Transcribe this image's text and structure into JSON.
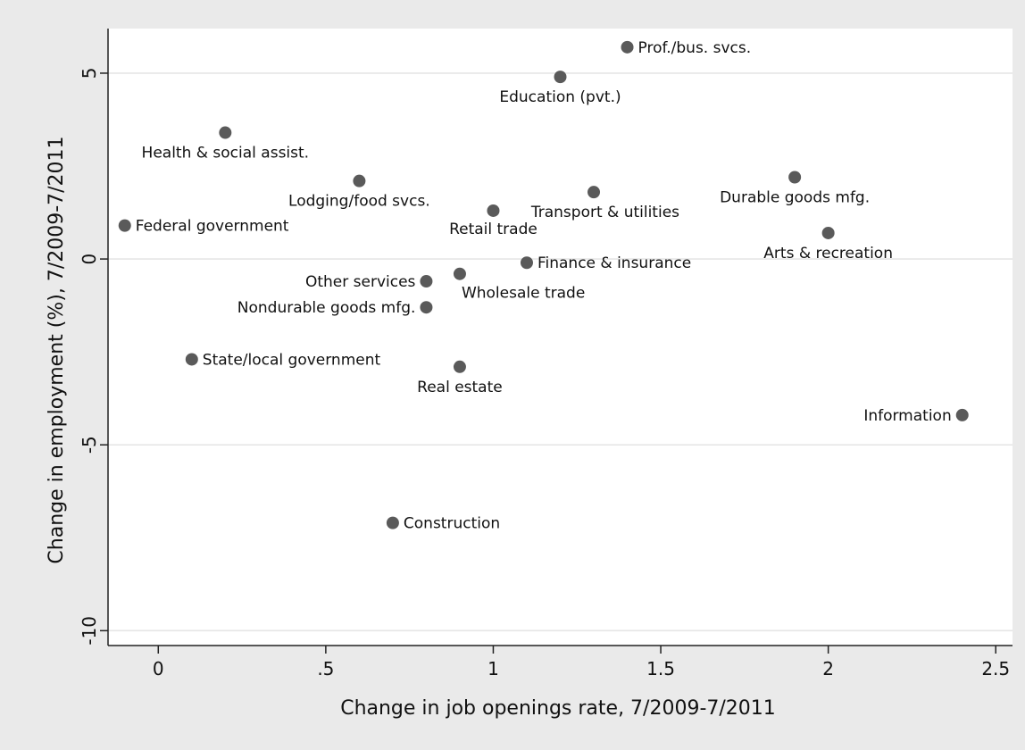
{
  "chart_data": {
    "type": "scatter",
    "title": "",
    "xlabel": "Change in job openings rate, 7/2009-7/2011",
    "ylabel": "Change in employment (%), 7/2009-7/2011",
    "xlim": [
      -0.15,
      2.55
    ],
    "ylim": [
      -10.4,
      6.2
    ],
    "x_ticks": [
      0,
      0.5,
      1,
      1.5,
      2,
      2.5
    ],
    "x_tick_labels": [
      "0",
      ".5",
      "1",
      "1.5",
      "2",
      "2.5"
    ],
    "y_ticks": [
      -10,
      -5,
      0,
      5
    ],
    "y_tick_labels": [
      "-10",
      "-5",
      "0",
      "5"
    ],
    "grid": "horizontal",
    "colors": {
      "background": "#eaeaea",
      "plot_background": "#ffffff",
      "marker": "#5a5a5a",
      "grid": "#e6e6e6"
    },
    "points": [
      {
        "label": "Prof./bus. svcs.",
        "x": 1.4,
        "y": 5.7,
        "label_pos": "right"
      },
      {
        "label": "Education (pvt.)",
        "x": 1.2,
        "y": 4.9,
        "label_pos": "below"
      },
      {
        "label": "Health & social assist.",
        "x": 0.2,
        "y": 3.4,
        "label_pos": "below"
      },
      {
        "label": "Lodging/food svcs.",
        "x": 0.6,
        "y": 2.1,
        "label_pos": "below"
      },
      {
        "label": "Durable goods mfg.",
        "x": 1.9,
        "y": 2.2,
        "label_pos": "below"
      },
      {
        "label": "Transport & utilities",
        "x": 1.3,
        "y": 1.8,
        "label_pos": "below-left"
      },
      {
        "label": "Retail trade",
        "x": 1.0,
        "y": 1.3,
        "label_pos": "below-left"
      },
      {
        "label": "Federal government",
        "x": -0.1,
        "y": 0.9,
        "label_pos": "right"
      },
      {
        "label": "Arts & recreation",
        "x": 2.0,
        "y": 0.7,
        "label_pos": "below"
      },
      {
        "label": "Finance & insurance",
        "x": 1.1,
        "y": -0.1,
        "label_pos": "right"
      },
      {
        "label": "Wholesale trade",
        "x": 0.9,
        "y": -0.4,
        "label_pos": "below-right"
      },
      {
        "label": "Other services",
        "x": 0.8,
        "y": -0.6,
        "label_pos": "left"
      },
      {
        "label": "Nondurable goods mfg.",
        "x": 0.8,
        "y": -1.3,
        "label_pos": "left"
      },
      {
        "label": "State/local government",
        "x": 0.1,
        "y": -2.7,
        "label_pos": "right"
      },
      {
        "label": "Real estate",
        "x": 0.9,
        "y": -2.9,
        "label_pos": "below"
      },
      {
        "label": "Information",
        "x": 2.4,
        "y": -4.2,
        "label_pos": "left"
      },
      {
        "label": "Construction",
        "x": 0.7,
        "y": -7.1,
        "label_pos": "right"
      }
    ]
  }
}
